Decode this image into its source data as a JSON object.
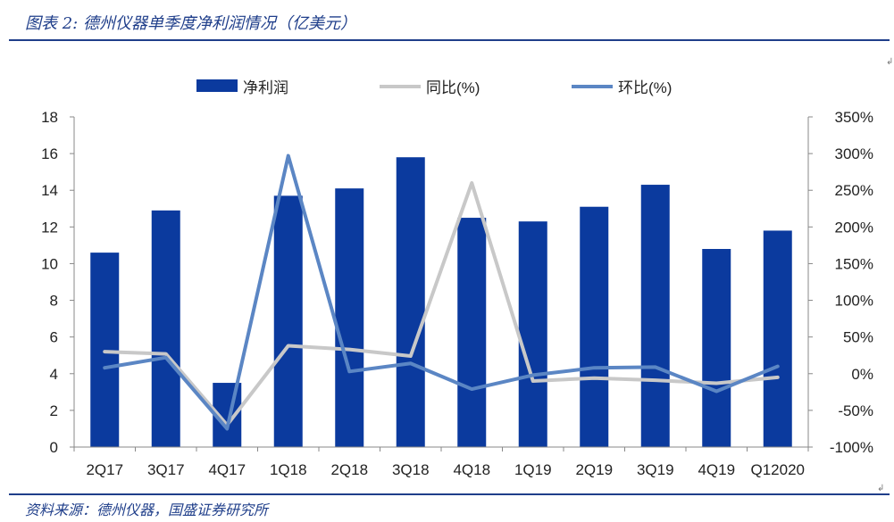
{
  "caption": "图表 2:  德州仪器单季度净利润情况（亿美元）",
  "source": "资料来源：德州仪器，国盛证券研究所",
  "colors": {
    "bar": "#0b3a9e",
    "yoy": "#c8c8c8",
    "qoq": "#5b86c4",
    "accent": "#1f3e8a"
  },
  "chart_data": {
    "type": "bar+line",
    "categories": [
      "2Q17",
      "3Q17",
      "4Q17",
      "1Q18",
      "2Q18",
      "3Q18",
      "4Q18",
      "1Q19",
      "2Q19",
      "3Q19",
      "4Q19",
      "Q12020"
    ],
    "series": [
      {
        "name": "净利润",
        "type": "bar",
        "axis": "left",
        "values": [
          10.6,
          12.9,
          3.5,
          13.7,
          14.1,
          15.8,
          12.5,
          12.3,
          13.1,
          14.3,
          10.8,
          11.8
        ]
      },
      {
        "name": "同比(%)",
        "type": "line",
        "axis": "right",
        "values": [
          30,
          27,
          -70,
          38,
          33,
          24,
          260,
          -10,
          -6,
          -9,
          -13,
          -5
        ]
      },
      {
        "name": "环比(%)",
        "type": "line",
        "axis": "right",
        "values": [
          8,
          22,
          -75,
          297,
          3,
          14,
          -21,
          -2,
          8,
          9,
          -24,
          10
        ]
      }
    ],
    "y_left": {
      "min": 0,
      "max": 18,
      "step": 2,
      "ticks": [
        "0",
        "2",
        "4",
        "6",
        "8",
        "10",
        "12",
        "14",
        "16",
        "18"
      ]
    },
    "y_right": {
      "min": -100,
      "max": 350,
      "step": 50,
      "ticks": [
        "-100%",
        "-50%",
        "0%",
        "50%",
        "100%",
        "150%",
        "200%",
        "250%",
        "300%",
        "350%"
      ]
    },
    "legend": "top",
    "grid": false
  }
}
